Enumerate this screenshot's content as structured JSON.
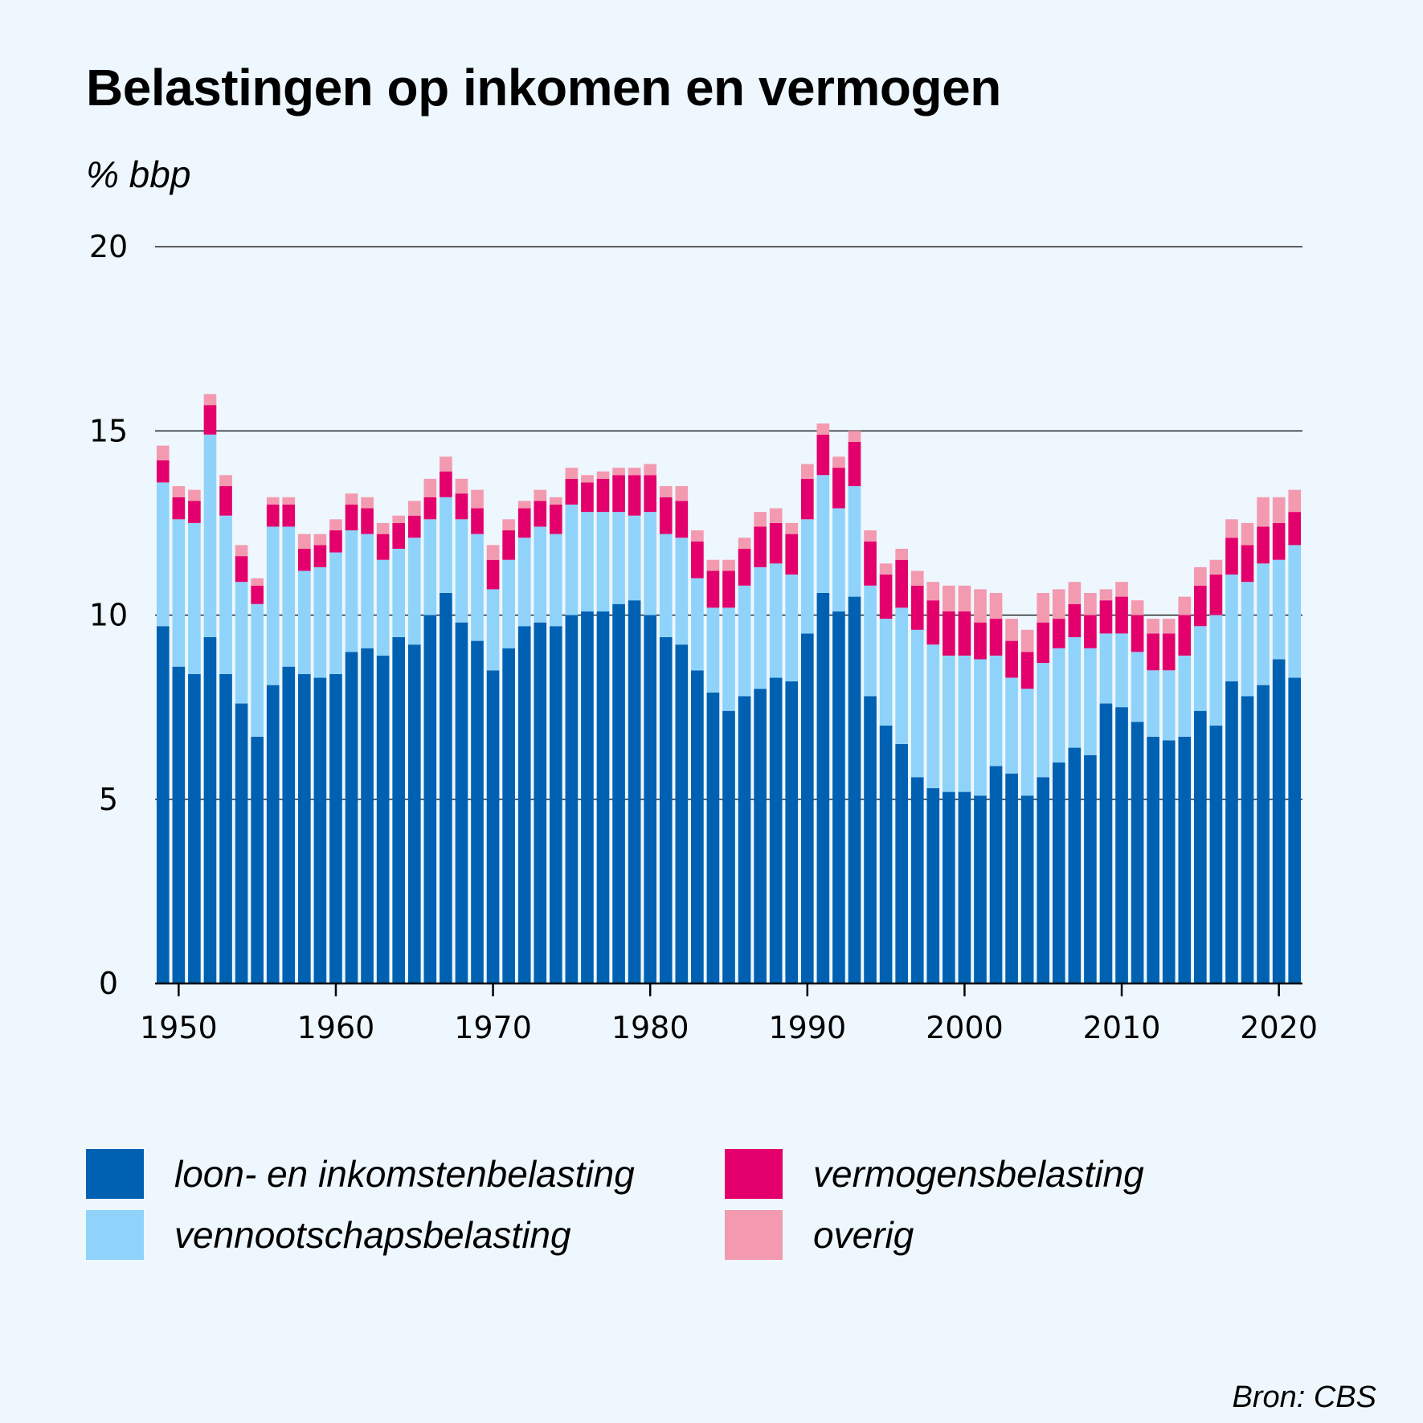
{
  "title": "Belastingen op inkomen en vermogen",
  "unit_label": "% bbp",
  "source": "Bron: CBS",
  "colors": {
    "background": "#eef7fd",
    "loon": "#0061b2",
    "vennootschap": "#8fd3fb",
    "vermogen": "#e3006c",
    "overig": "#f39ab0"
  },
  "legend": [
    {
      "key": "loon",
      "label": "loon- en inkomstenbelasting"
    },
    {
      "key": "vennootschap",
      "label": "vennootschapsbelasting"
    },
    {
      "key": "vermogen",
      "label": "vermogensbelasting"
    },
    {
      "key": "overig",
      "label": "overig"
    }
  ],
  "chart_data": {
    "type": "bar",
    "stacked": true,
    "title": "Belastingen op inkomen en vermogen",
    "ylabel": "% bbp",
    "xlabel": "",
    "ylim": [
      0,
      20
    ],
    "yticks": [
      0,
      5,
      10,
      15,
      20
    ],
    "xticks": [
      1950,
      1960,
      1970,
      1980,
      1990,
      2000,
      2010,
      2020
    ],
    "gridlines": "horizontal",
    "categories": [
      1949,
      1950,
      1951,
      1952,
      1953,
      1954,
      1955,
      1956,
      1957,
      1958,
      1959,
      1960,
      1961,
      1962,
      1963,
      1964,
      1965,
      1966,
      1967,
      1968,
      1969,
      1970,
      1971,
      1972,
      1973,
      1974,
      1975,
      1976,
      1977,
      1978,
      1979,
      1980,
      1981,
      1982,
      1983,
      1984,
      1985,
      1986,
      1987,
      1988,
      1989,
      1990,
      1991,
      1992,
      1993,
      1994,
      1995,
      1996,
      1997,
      1998,
      1999,
      2000,
      2001,
      2002,
      2003,
      2004,
      2005,
      2006,
      2007,
      2008,
      2009,
      2010,
      2011,
      2012,
      2013,
      2014,
      2015,
      2016,
      2017,
      2018,
      2019,
      2020,
      2021
    ],
    "series": [
      {
        "name": "loon- en inkomstenbelasting",
        "key": "loon",
        "values": [
          9.7,
          8.6,
          8.4,
          9.4,
          8.4,
          7.6,
          6.7,
          8.1,
          8.6,
          8.4,
          8.3,
          8.4,
          9.0,
          9.1,
          8.9,
          9.4,
          9.2,
          10.0,
          10.6,
          9.8,
          9.3,
          8.5,
          9.1,
          9.7,
          9.8,
          9.7,
          10.0,
          10.1,
          10.1,
          10.3,
          10.4,
          10.0,
          9.4,
          9.2,
          8.5,
          7.9,
          7.4,
          7.8,
          8.0,
          8.3,
          8.2,
          9.5,
          10.6,
          10.1,
          10.5,
          7.8,
          7.0,
          6.5,
          5.6,
          5.3,
          5.2,
          5.2,
          5.1,
          5.9,
          5.7,
          5.1,
          5.6,
          6.0,
          6.4,
          6.2,
          7.6,
          7.5,
          7.1,
          6.7,
          6.6,
          6.7,
          7.4,
          7.0,
          8.2,
          7.8,
          8.1,
          8.8,
          8.3
        ]
      },
      {
        "name": "vennootschapsbelasting",
        "key": "vennootschap",
        "values": [
          3.9,
          4.0,
          4.1,
          5.5,
          4.3,
          3.3,
          3.6,
          4.3,
          3.8,
          2.8,
          3.0,
          3.3,
          3.3,
          3.1,
          2.6,
          2.4,
          2.9,
          2.6,
          2.6,
          2.8,
          2.9,
          2.2,
          2.4,
          2.4,
          2.6,
          2.5,
          3.0,
          2.7,
          2.7,
          2.5,
          2.3,
          2.8,
          2.8,
          2.9,
          2.5,
          2.3,
          2.8,
          3.0,
          3.3,
          3.1,
          2.9,
          3.1,
          3.2,
          2.8,
          3.0,
          3.0,
          2.9,
          3.7,
          4.0,
          3.9,
          3.7,
          3.7,
          3.7,
          3.0,
          2.6,
          2.9,
          3.1,
          3.1,
          3.0,
          2.9,
          1.9,
          2.0,
          1.9,
          1.8,
          1.9,
          2.2,
          2.3,
          3.0,
          2.9,
          3.1,
          3.3,
          2.7,
          3.6
        ]
      },
      {
        "name": "vermogensbelasting",
        "key": "vermogen",
        "values": [
          0.6,
          0.6,
          0.6,
          0.8,
          0.8,
          0.7,
          0.5,
          0.6,
          0.6,
          0.6,
          0.6,
          0.6,
          0.7,
          0.7,
          0.7,
          0.7,
          0.6,
          0.6,
          0.7,
          0.7,
          0.7,
          0.8,
          0.8,
          0.8,
          0.7,
          0.8,
          0.7,
          0.8,
          0.9,
          1.0,
          1.1,
          1.0,
          1.0,
          1.0,
          1.0,
          1.0,
          1.0,
          1.0,
          1.1,
          1.1,
          1.1,
          1.1,
          1.1,
          1.1,
          1.2,
          1.2,
          1.2,
          1.3,
          1.2,
          1.2,
          1.2,
          1.2,
          1.0,
          1.0,
          1.0,
          1.0,
          1.1,
          0.8,
          0.9,
          0.9,
          0.9,
          1.0,
          1.0,
          1.0,
          1.0,
          1.1,
          1.1,
          1.1,
          1.0,
          1.0,
          1.0,
          1.0,
          0.9
        ]
      },
      {
        "name": "overig",
        "key": "overig",
        "values": [
          0.4,
          0.3,
          0.3,
          0.3,
          0.3,
          0.3,
          0.2,
          0.2,
          0.2,
          0.4,
          0.3,
          0.3,
          0.3,
          0.3,
          0.3,
          0.2,
          0.4,
          0.5,
          0.4,
          0.4,
          0.5,
          0.4,
          0.3,
          0.2,
          0.3,
          0.2,
          0.3,
          0.2,
          0.2,
          0.2,
          0.2,
          0.3,
          0.3,
          0.4,
          0.3,
          0.3,
          0.3,
          0.3,
          0.4,
          0.4,
          0.3,
          0.4,
          0.3,
          0.3,
          0.3,
          0.3,
          0.3,
          0.3,
          0.4,
          0.5,
          0.7,
          0.7,
          0.9,
          0.7,
          0.6,
          0.6,
          0.8,
          0.8,
          0.6,
          0.6,
          0.3,
          0.4,
          0.4,
          0.4,
          0.4,
          0.5,
          0.5,
          0.4,
          0.5,
          0.6,
          0.8,
          0.7,
          0.6
        ]
      }
    ]
  }
}
